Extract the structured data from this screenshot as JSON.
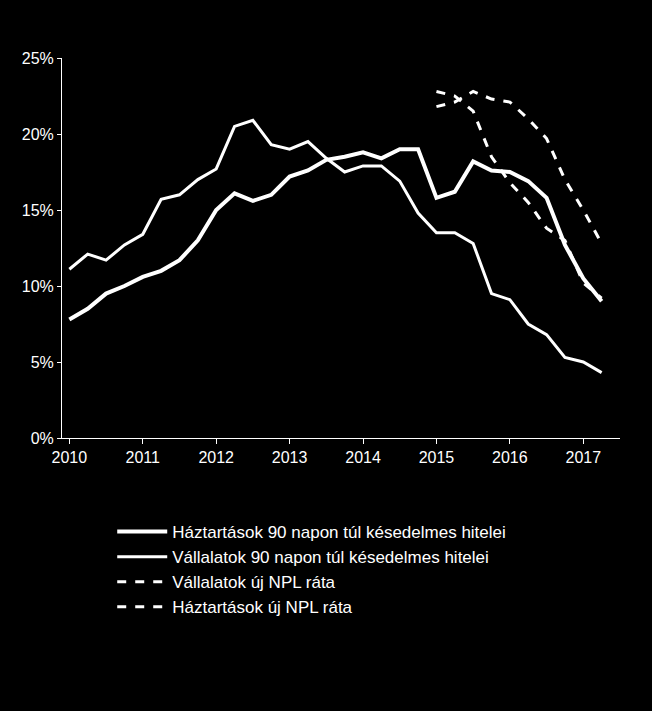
{
  "chart_data": {
    "type": "line",
    "x": [
      2010,
      2010.25,
      2010.5,
      2010.75,
      2011,
      2011.25,
      2011.5,
      2011.75,
      2012,
      2012.25,
      2012.5,
      2012.75,
      2013,
      2013.25,
      2013.5,
      2013.75,
      2014,
      2014.25,
      2014.5,
      2014.75,
      2015,
      2015.25,
      2015.5,
      2015.75,
      2016,
      2016.25,
      2016.5,
      2016.75,
      2017,
      2017.25
    ],
    "series": [
      {
        "name": "Háztartások 90 napon túl késedelmes hitelei",
        "color": "#ffffff",
        "line_style": "solid",
        "values": [
          7.8,
          8.5,
          9.5,
          10.0,
          10.6,
          11.0,
          11.7,
          13.0,
          15.0,
          16.1,
          15.6,
          16.0,
          17.2,
          17.6,
          18.3,
          18.5,
          18.8,
          18.4,
          19.0,
          19.0,
          15.8,
          16.2,
          18.2,
          17.6,
          17.5,
          16.9,
          15.8,
          12.7,
          10.5,
          9.0
        ]
      },
      {
        "name": "Vállalatok 90 napon túl késedelmes hitelei",
        "color": "#ffffff",
        "line_style": "solid",
        "values": [
          11.1,
          12.1,
          11.7,
          12.7,
          13.4,
          15.7,
          16.0,
          17.0,
          17.7,
          20.5,
          20.9,
          19.3,
          19.0,
          19.5,
          18.4,
          17.5,
          17.9,
          17.9,
          16.9,
          14.8,
          13.5,
          13.5,
          12.8,
          9.5,
          9.1,
          7.5,
          6.8,
          5.3,
          5.0,
          4.3
        ]
      },
      {
        "name": "Vállalatok új NPL ráta",
        "color": "#ffffff",
        "line_style": "dash",
        "values": [
          null,
          null,
          null,
          null,
          null,
          null,
          null,
          null,
          null,
          null,
          null,
          null,
          null,
          null,
          null,
          null,
          null,
          null,
          null,
          null,
          22.8,
          22.5,
          21.5,
          18.5,
          16.8,
          15.5,
          13.8,
          13.0,
          10.2,
          9.2
        ]
      },
      {
        "name": "Háztartások új NPL ráta",
        "color": "#ffffff",
        "line_style": "dash",
        "values": [
          null,
          null,
          null,
          null,
          null,
          null,
          null,
          null,
          null,
          null,
          null,
          null,
          null,
          null,
          null,
          null,
          null,
          null,
          null,
          null,
          21.8,
          22.1,
          22.8,
          22.3,
          22.1,
          21.0,
          19.7,
          17.0,
          15.0,
          12.8
        ]
      }
    ],
    "xlim": [
      2009.9,
      2017.5
    ],
    "xticks": [
      2010,
      2011,
      2012,
      2013,
      2014,
      2015,
      2016,
      2017
    ],
    "ylim": [
      0,
      25
    ],
    "yticks": [
      {
        "value": 0,
        "label": "0%"
      },
      {
        "value": 5,
        "label": "5%"
      },
      {
        "value": 10,
        "label": "10%"
      },
      {
        "value": 15,
        "label": "15%"
      },
      {
        "value": 20,
        "label": "20%"
      },
      {
        "value": 25,
        "label": "25%"
      }
    ],
    "grid": false,
    "legend": "bottom"
  }
}
